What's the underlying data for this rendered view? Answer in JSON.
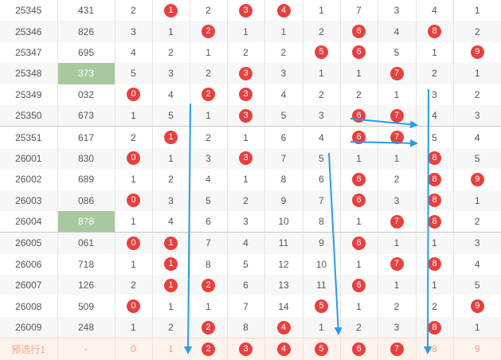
{
  "rows": [
    {
      "issue": "25345",
      "num": "431",
      "c": [
        {
          "v": "2",
          "b": false
        },
        {
          "v": "1",
          "b": true
        },
        {
          "v": "2",
          "b": false
        },
        {
          "v": "3",
          "b": true
        },
        {
          "v": "4",
          "b": true
        },
        {
          "v": "1",
          "b": false
        },
        {
          "v": "7",
          "b": false
        },
        {
          "v": "3",
          "b": false
        },
        {
          "v": "4",
          "b": false
        },
        {
          "v": "1",
          "b": false
        }
      ]
    },
    {
      "issue": "25346",
      "num": "826",
      "c": [
        {
          "v": "3",
          "b": false
        },
        {
          "v": "1",
          "b": false
        },
        {
          "v": "2",
          "b": true
        },
        {
          "v": "1",
          "b": false
        },
        {
          "v": "1",
          "b": false
        },
        {
          "v": "2",
          "b": false
        },
        {
          "v": "6",
          "b": true
        },
        {
          "v": "4",
          "b": false
        },
        {
          "v": "8",
          "b": true
        },
        {
          "v": "2",
          "b": false
        }
      ]
    },
    {
      "issue": "25347",
      "num": "695",
      "c": [
        {
          "v": "4",
          "b": false
        },
        {
          "v": "2",
          "b": false
        },
        {
          "v": "1",
          "b": false
        },
        {
          "v": "2",
          "b": false
        },
        {
          "v": "2",
          "b": false
        },
        {
          "v": "5",
          "b": true
        },
        {
          "v": "6",
          "b": true
        },
        {
          "v": "5",
          "b": false
        },
        {
          "v": "1",
          "b": false
        },
        {
          "v": "9",
          "b": true
        }
      ]
    },
    {
      "issue": "25348",
      "num": "373",
      "hl": true,
      "c": [
        {
          "v": "5",
          "b": false
        },
        {
          "v": "3",
          "b": false
        },
        {
          "v": "2",
          "b": false
        },
        {
          "v": "3",
          "b": true
        },
        {
          "v": "3",
          "b": false
        },
        {
          "v": "1",
          "b": false
        },
        {
          "v": "1",
          "b": false
        },
        {
          "v": "7",
          "b": true
        },
        {
          "v": "2",
          "b": false
        },
        {
          "v": "1",
          "b": false
        }
      ]
    },
    {
      "issue": "25349",
      "num": "032",
      "c": [
        {
          "v": "0",
          "b": true
        },
        {
          "v": "4",
          "b": false
        },
        {
          "v": "2",
          "b": true
        },
        {
          "v": "3",
          "b": true
        },
        {
          "v": "4",
          "b": false
        },
        {
          "v": "2",
          "b": false
        },
        {
          "v": "2",
          "b": false
        },
        {
          "v": "1",
          "b": false
        },
        {
          "v": "3",
          "b": false
        },
        {
          "v": "2",
          "b": false
        }
      ]
    },
    {
      "issue": "25350",
      "num": "673",
      "c": [
        {
          "v": "1",
          "b": false
        },
        {
          "v": "5",
          "b": false
        },
        {
          "v": "1",
          "b": false
        },
        {
          "v": "3",
          "b": true
        },
        {
          "v": "5",
          "b": false
        },
        {
          "v": "3",
          "b": false
        },
        {
          "v": "6",
          "b": true
        },
        {
          "v": "7",
          "b": true
        },
        {
          "v": "4",
          "b": false
        },
        {
          "v": "3",
          "b": false
        }
      ]
    },
    {
      "issue": "25351",
      "num": "617",
      "sep": true,
      "c": [
        {
          "v": "2",
          "b": false
        },
        {
          "v": "1",
          "b": true
        },
        {
          "v": "2",
          "b": false
        },
        {
          "v": "1",
          "b": false
        },
        {
          "v": "6",
          "b": false
        },
        {
          "v": "4",
          "b": false
        },
        {
          "v": "6",
          "b": true
        },
        {
          "v": "7",
          "b": true
        },
        {
          "v": "5",
          "b": false
        },
        {
          "v": "4",
          "b": false
        }
      ]
    },
    {
      "issue": "26001",
      "num": "830",
      "c": [
        {
          "v": "0",
          "b": true
        },
        {
          "v": "1",
          "b": false
        },
        {
          "v": "3",
          "b": false
        },
        {
          "v": "3",
          "b": true
        },
        {
          "v": "7",
          "b": false
        },
        {
          "v": "5",
          "b": false
        },
        {
          "v": "1",
          "b": false
        },
        {
          "v": "1",
          "b": false
        },
        {
          "v": "8",
          "b": true
        },
        {
          "v": "5",
          "b": false
        }
      ]
    },
    {
      "issue": "26002",
      "num": "689",
      "c": [
        {
          "v": "1",
          "b": false
        },
        {
          "v": "2",
          "b": false
        },
        {
          "v": "4",
          "b": false
        },
        {
          "v": "1",
          "b": false
        },
        {
          "v": "8",
          "b": false
        },
        {
          "v": "6",
          "b": false
        },
        {
          "v": "6",
          "b": true
        },
        {
          "v": "2",
          "b": false
        },
        {
          "v": "8",
          "b": true
        },
        {
          "v": "9",
          "b": true
        }
      ]
    },
    {
      "issue": "26003",
      "num": "086",
      "c": [
        {
          "v": "0",
          "b": true
        },
        {
          "v": "3",
          "b": false
        },
        {
          "v": "5",
          "b": false
        },
        {
          "v": "2",
          "b": false
        },
        {
          "v": "9",
          "b": false
        },
        {
          "v": "7",
          "b": false
        },
        {
          "v": "6",
          "b": true
        },
        {
          "v": "3",
          "b": false
        },
        {
          "v": "8",
          "b": true
        },
        {
          "v": "1",
          "b": false
        }
      ]
    },
    {
      "issue": "26004",
      "num": "878",
      "hl": true,
      "c": [
        {
          "v": "1",
          "b": false
        },
        {
          "v": "4",
          "b": false
        },
        {
          "v": "6",
          "b": false
        },
        {
          "v": "3",
          "b": false
        },
        {
          "v": "10",
          "b": false
        },
        {
          "v": "8",
          "b": false
        },
        {
          "v": "1",
          "b": false
        },
        {
          "v": "7",
          "b": true
        },
        {
          "v": "8",
          "b": true
        },
        {
          "v": "2",
          "b": false
        }
      ]
    },
    {
      "issue": "26005",
      "num": "061",
      "sep": true,
      "c": [
        {
          "v": "0",
          "b": true
        },
        {
          "v": "1",
          "b": true
        },
        {
          "v": "7",
          "b": false
        },
        {
          "v": "4",
          "b": false
        },
        {
          "v": "11",
          "b": false
        },
        {
          "v": "9",
          "b": false
        },
        {
          "v": "6",
          "b": true
        },
        {
          "v": "1",
          "b": false
        },
        {
          "v": "1",
          "b": false
        },
        {
          "v": "3",
          "b": false
        }
      ]
    },
    {
      "issue": "26006",
      "num": "718",
      "c": [
        {
          "v": "1",
          "b": false
        },
        {
          "v": "1",
          "b": true
        },
        {
          "v": "8",
          "b": false
        },
        {
          "v": "5",
          "b": false
        },
        {
          "v": "12",
          "b": false
        },
        {
          "v": "10",
          "b": false
        },
        {
          "v": "1",
          "b": false
        },
        {
          "v": "7",
          "b": true
        },
        {
          "v": "8",
          "b": true
        },
        {
          "v": "4",
          "b": false
        }
      ]
    },
    {
      "issue": "26007",
      "num": "126",
      "c": [
        {
          "v": "2",
          "b": false
        },
        {
          "v": "1",
          "b": true
        },
        {
          "v": "2",
          "b": true
        },
        {
          "v": "6",
          "b": false
        },
        {
          "v": "13",
          "b": false
        },
        {
          "v": "11",
          "b": false
        },
        {
          "v": "6",
          "b": true
        },
        {
          "v": "1",
          "b": false
        },
        {
          "v": "1",
          "b": false
        },
        {
          "v": "5",
          "b": false
        }
      ]
    },
    {
      "issue": "26008",
      "num": "509",
      "c": [
        {
          "v": "0",
          "b": true
        },
        {
          "v": "1",
          "b": false
        },
        {
          "v": "1",
          "b": false
        },
        {
          "v": "7",
          "b": false
        },
        {
          "v": "14",
          "b": false
        },
        {
          "v": "5",
          "b": true
        },
        {
          "v": "1",
          "b": false
        },
        {
          "v": "2",
          "b": false
        },
        {
          "v": "2",
          "b": false
        },
        {
          "v": "9",
          "b": true
        }
      ]
    },
    {
      "issue": "26009",
      "num": "248",
      "c": [
        {
          "v": "1",
          "b": false
        },
        {
          "v": "2",
          "b": false
        },
        {
          "v": "2",
          "b": true
        },
        {
          "v": "8",
          "b": false
        },
        {
          "v": "4",
          "b": true
        },
        {
          "v": "1",
          "b": false
        },
        {
          "v": "2",
          "b": false
        },
        {
          "v": "3",
          "b": false
        },
        {
          "v": "8",
          "b": true
        },
        {
          "v": "1",
          "b": false
        }
      ]
    }
  ],
  "preselect": {
    "label": "预选行1",
    "num": "-",
    "c": [
      {
        "v": "0",
        "b": false
      },
      {
        "v": "1",
        "b": false
      },
      {
        "v": "2",
        "b": true
      },
      {
        "v": "3",
        "b": true
      },
      {
        "v": "4",
        "b": true
      },
      {
        "v": "5",
        "b": true
      },
      {
        "v": "6",
        "b": true
      },
      {
        "v": "7",
        "b": true
      },
      {
        "v": "8",
        "b": false
      },
      {
        "v": "9",
        "b": false
      }
    ]
  },
  "colors": {
    "ball": "#e8403f",
    "highlight": "#a8c9a0",
    "arrow": "#2a9be8",
    "preselect_text": "#f2a487"
  }
}
